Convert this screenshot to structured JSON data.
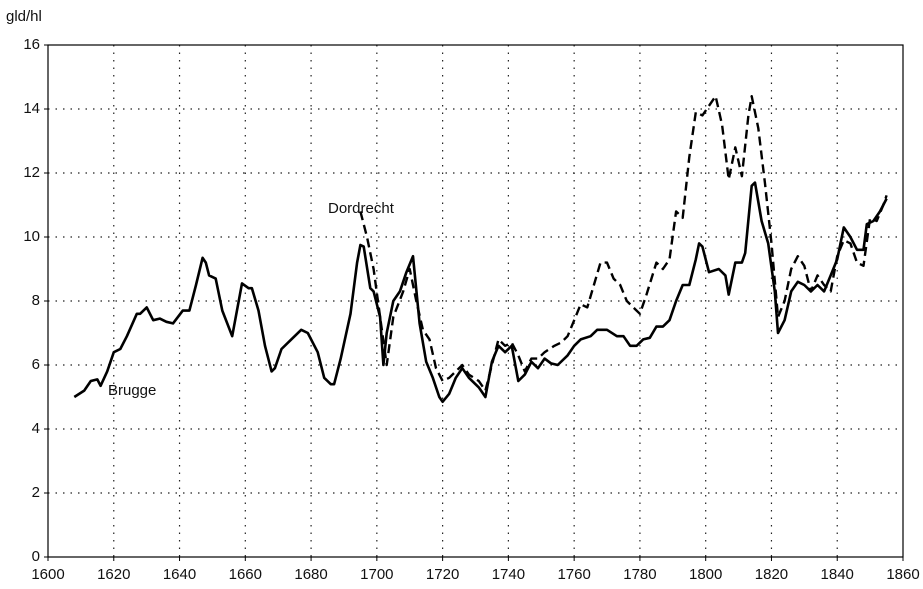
{
  "chart_data": {
    "type": "line",
    "y_label": "gld/hl",
    "annotations": [
      "Dordrecht",
      "Brugge"
    ],
    "xlim": [
      1600,
      1860
    ],
    "xticks": [
      1600,
      1620,
      1640,
      1660,
      1680,
      1700,
      1720,
      1740,
      1760,
      1780,
      1800,
      1820,
      1840,
      1860
    ],
    "ylim": [
      0,
      16
    ],
    "yticks": [
      0,
      2,
      4,
      6,
      8,
      10,
      12,
      14,
      16
    ],
    "grid": true,
    "series": [
      {
        "name": "Brugge",
        "color": "#000000",
        "dash": "solid",
        "x": [
          1608,
          1611,
          1613,
          1615,
          1616,
          1618,
          1620,
          1622,
          1624,
          1627,
          1628,
          1630,
          1632,
          1634,
          1636,
          1638,
          1641,
          1643,
          1645,
          1647,
          1648,
          1649,
          1651,
          1653,
          1656,
          1659,
          1661,
          1662,
          1664,
          1666,
          1668,
          1669,
          1671,
          1674,
          1677,
          1679,
          1682,
          1684,
          1686,
          1687,
          1689,
          1692,
          1694,
          1695,
          1696,
          1698,
          1699,
          1701,
          1702,
          1703,
          1705,
          1707,
          1709,
          1711,
          1713,
          1715,
          1717,
          1719,
          1720,
          1722,
          1724,
          1726,
          1728,
          1731,
          1733,
          1735,
          1737,
          1739,
          1741,
          1743,
          1745,
          1747,
          1749,
          1751,
          1753,
          1755,
          1758,
          1760,
          1762,
          1765,
          1767,
          1770,
          1773,
          1775,
          1777,
          1779,
          1781,
          1783,
          1785,
          1787,
          1789,
          1791,
          1793,
          1795,
          1797,
          1798,
          1799,
          1801,
          1804,
          1806,
          1807,
          1809,
          1811,
          1812,
          1814,
          1815,
          1817,
          1819,
          1821,
          1822,
          1824,
          1826,
          1828,
          1830,
          1832,
          1834,
          1836,
          1838,
          1840,
          1842,
          1844,
          1846,
          1848,
          1849,
          1851,
          1853,
          1855
        ],
        "values": [
          5.0,
          5.2,
          5.5,
          5.55,
          5.35,
          5.8,
          6.4,
          6.5,
          6.9,
          7.6,
          7.6,
          7.8,
          7.4,
          7.45,
          7.35,
          7.3,
          7.7,
          7.7,
          8.5,
          9.35,
          9.2,
          8.8,
          8.7,
          7.7,
          6.9,
          8.55,
          8.4,
          8.4,
          7.7,
          6.6,
          5.8,
          5.9,
          6.5,
          6.8,
          7.1,
          7.0,
          6.4,
          5.6,
          5.4,
          5.4,
          6.2,
          7.6,
          9.2,
          9.75,
          9.7,
          8.4,
          8.3,
          7.5,
          6.0,
          7.0,
          8.0,
          8.3,
          8.9,
          9.4,
          7.3,
          6.1,
          5.6,
          5.0,
          4.85,
          5.1,
          5.6,
          5.9,
          5.6,
          5.3,
          5.0,
          6.1,
          6.6,
          6.4,
          6.6,
          5.5,
          5.7,
          6.1,
          5.9,
          6.2,
          6.05,
          6.0,
          6.3,
          6.6,
          6.8,
          6.9,
          7.1,
          7.1,
          6.9,
          6.9,
          6.6,
          6.6,
          6.8,
          6.85,
          7.2,
          7.2,
          7.4,
          8.0,
          8.5,
          8.5,
          9.3,
          9.8,
          9.7,
          8.9,
          9.0,
          8.8,
          8.2,
          9.2,
          9.2,
          9.5,
          11.6,
          11.7,
          10.5,
          9.8,
          8.3,
          7.0,
          7.4,
          8.3,
          8.6,
          8.5,
          8.3,
          8.5,
          8.3,
          8.8,
          9.3,
          10.3,
          10.0,
          9.6,
          9.6,
          10.4,
          10.5,
          10.8,
          11.2
        ]
      },
      {
        "name": "Dordrecht",
        "color": "#000000",
        "dash": "dashed",
        "x": [
          1695,
          1697,
          1699,
          1701,
          1703,
          1705,
          1708,
          1710,
          1712,
          1714,
          1716,
          1718,
          1720,
          1722,
          1724,
          1726,
          1728,
          1731,
          1733,
          1735,
          1737,
          1739,
          1741,
          1743,
          1745,
          1747,
          1749,
          1751,
          1754,
          1756,
          1758,
          1760,
          1762,
          1764,
          1766,
          1768,
          1770,
          1772,
          1774,
          1776,
          1778,
          1780,
          1782,
          1785,
          1787,
          1789,
          1791,
          1793,
          1795,
          1797,
          1799,
          1801,
          1803,
          1805,
          1807,
          1809,
          1811,
          1813,
          1814,
          1816,
          1818,
          1820,
          1822,
          1824,
          1826,
          1828,
          1830,
          1832,
          1834,
          1836,
          1838,
          1840,
          1842,
          1844,
          1846,
          1848,
          1850,
          1852,
          1854,
          1855
        ],
        "values": [
          10.8,
          10.0,
          9.0,
          7.5,
          6.0,
          7.5,
          8.3,
          9.0,
          8.0,
          7.1,
          6.8,
          5.9,
          5.5,
          5.6,
          5.8,
          6.0,
          5.7,
          5.5,
          5.2,
          6.0,
          6.8,
          6.6,
          6.7,
          6.3,
          5.8,
          6.2,
          6.2,
          6.4,
          6.6,
          6.7,
          6.9,
          7.4,
          7.9,
          7.8,
          8.5,
          9.2,
          9.2,
          8.7,
          8.5,
          8.0,
          7.8,
          7.6,
          8.2,
          9.2,
          9.0,
          9.3,
          10.8,
          10.6,
          12.5,
          13.9,
          13.8,
          14.1,
          14.4,
          13.5,
          11.8,
          12.8,
          11.9,
          13.8,
          14.4,
          13.4,
          11.7,
          9.8,
          7.5,
          8.0,
          9.0,
          9.4,
          9.1,
          8.3,
          8.8,
          8.5,
          8.3,
          9.4,
          9.9,
          9.8,
          9.2,
          9.1,
          10.6,
          10.5,
          11.0,
          11.3
        ]
      }
    ]
  }
}
